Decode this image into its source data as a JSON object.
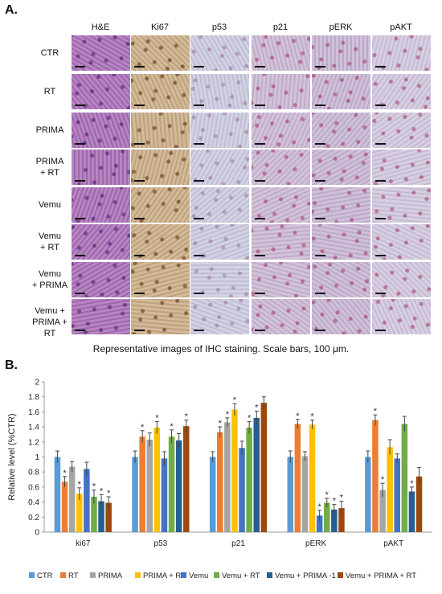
{
  "panel_a": {
    "label": "A.",
    "columns": [
      "H&E",
      "Ki67",
      "p53",
      "p21",
      "pERK",
      "pAKT"
    ],
    "rows": [
      [
        "CTR"
      ],
      [
        "RT"
      ],
      [
        "PRIMA"
      ],
      [
        "PRIMA",
        "+ RT"
      ],
      [
        "Vemu"
      ],
      [
        "Vemu",
        "+ RT"
      ],
      [
        "Vemu",
        "+ PRIMA"
      ],
      [
        "Vemu +",
        "PRIMA + RT"
      ]
    ],
    "caption": "Representative images of IHC staining. Scale bars, 100 μm.",
    "stain_colors": {
      "H&E": "#a76bb5",
      "Ki67": "#c8ab84",
      "p53": "#c9c8df",
      "p21": "#c9b6d2",
      "pERK": "#c6b3d2",
      "pAKT": "#d0c5dd"
    }
  },
  "panel_b": {
    "label": "B.",
    "chart_data": {
      "type": "bar",
      "ylabel": "Relative level (%CTR)",
      "ylim": [
        0,
        2
      ],
      "yticks": [
        "0",
        "0.2",
        "0.4",
        "0.6",
        "0.8",
        "1",
        "1.2",
        "1.4",
        "1.6",
        "1.8",
        "2"
      ],
      "categories": [
        "ki67",
        "p53",
        "p21",
        "pERK",
        "pAKT"
      ],
      "significance_marker": "*",
      "series": [
        {
          "name": "CTR",
          "color": "#5b9bd5",
          "values": [
            1.0,
            1.0,
            1.0,
            1.0,
            1.0
          ],
          "errors": [
            0.08,
            0.08,
            0.07,
            0.08,
            0.08
          ],
          "sig": [
            false,
            false,
            false,
            false,
            false
          ]
        },
        {
          "name": "RT",
          "color": "#ed7d31",
          "values": [
            0.67,
            1.27,
            1.33,
            1.44,
            1.49
          ],
          "errors": [
            0.07,
            0.08,
            0.07,
            0.06,
            0.07
          ],
          "sig": [
            true,
            true,
            true,
            true,
            true
          ]
        },
        {
          "name": "PRIMA",
          "color": "#a5a5a5",
          "values": [
            0.87,
            1.23,
            1.46,
            1.01,
            0.56
          ],
          "errors": [
            0.07,
            0.09,
            0.06,
            0.06,
            0.09
          ],
          "sig": [
            false,
            false,
            true,
            false,
            true
          ]
        },
        {
          "name": "PRIMA + RT",
          "color": "#ffc000",
          "values": [
            0.51,
            1.39,
            1.63,
            1.43,
            1.13
          ],
          "errors": [
            0.08,
            0.08,
            0.08,
            0.06,
            0.1
          ],
          "sig": [
            true,
            true,
            true,
            true,
            false
          ]
        },
        {
          "name": "Vemu",
          "color": "#4472c4",
          "values": [
            0.84,
            0.98,
            1.12,
            0.22,
            0.98
          ],
          "errors": [
            0.09,
            0.09,
            0.09,
            0.07,
            0.06
          ],
          "sig": [
            false,
            false,
            false,
            true,
            false
          ]
        },
        {
          "name": "Vemu + RT",
          "color": "#70ad47",
          "values": [
            0.47,
            1.27,
            1.39,
            0.39,
            1.44
          ],
          "errors": [
            0.09,
            0.09,
            0.08,
            0.06,
            0.1
          ],
          "sig": [
            true,
            true,
            true,
            true,
            false
          ]
        },
        {
          "name": "Vemu + PRIMA -1",
          "color": "#255e91",
          "values": [
            0.41,
            1.22,
            1.52,
            0.3,
            0.54
          ],
          "errors": [
            0.09,
            0.09,
            0.09,
            0.07,
            0.06
          ],
          "sig": [
            true,
            false,
            true,
            true,
            true
          ]
        },
        {
          "name": "Vemu + PRIMA + RT",
          "color": "#9e480e",
          "values": [
            0.39,
            1.41,
            1.72,
            0.32,
            0.74
          ],
          "errors": [
            0.08,
            0.08,
            0.08,
            0.09,
            0.12
          ],
          "sig": [
            true,
            true,
            false,
            true,
            false
          ]
        }
      ],
      "legend_position": "bottom",
      "grid": false
    }
  }
}
